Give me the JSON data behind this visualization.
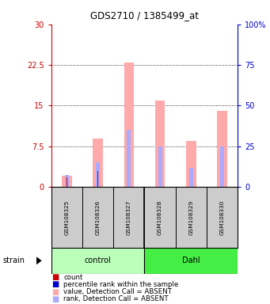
{
  "title": "GDS2710 / 1385499_at",
  "samples": [
    "GSM108325",
    "GSM108326",
    "GSM108327",
    "GSM108328",
    "GSM108329",
    "GSM108330"
  ],
  "group_labels": [
    "control",
    "Dahl"
  ],
  "group_colors": [
    "#bbffbb",
    "#44ee44"
  ],
  "pink_values": [
    2.0,
    9.0,
    23.0,
    16.0,
    8.5,
    14.0
  ],
  "blue_values": [
    2.2,
    4.5,
    10.5,
    7.5,
    3.5,
    7.5
  ],
  "red_values": [
    1.8,
    3.0,
    0.0,
    0.0,
    0.0,
    0.0
  ],
  "ylim_left": [
    0,
    30
  ],
  "ylim_right": [
    0,
    100
  ],
  "yticks_left": [
    0,
    7.5,
    15,
    22.5,
    30
  ],
  "ytick_labels_left": [
    "0",
    "7.5",
    "15",
    "22.5",
    "30"
  ],
  "yticks_right": [
    0,
    25,
    50,
    75,
    100
  ],
  "ytick_labels_right": [
    "0",
    "25",
    "50",
    "75",
    "100%"
  ],
  "left_axis_color": "#cc0000",
  "right_axis_color": "#0000cc",
  "grid_yticks": [
    7.5,
    15,
    22.5
  ],
  "color_pink": "#ffaaaa",
  "color_lightblue": "#aaaaff",
  "color_red": "#cc0000",
  "color_darkblue": "#0000cc",
  "bg_sample": "#cccccc",
  "legend_items": [
    {
      "color": "#cc0000",
      "label": "count"
    },
    {
      "color": "#0000cc",
      "label": "percentile rank within the sample"
    },
    {
      "color": "#ffaaaa",
      "label": "value, Detection Call = ABSENT"
    },
    {
      "color": "#aaaaff",
      "label": "rank, Detection Call = ABSENT"
    }
  ],
  "strain_label": "strain"
}
